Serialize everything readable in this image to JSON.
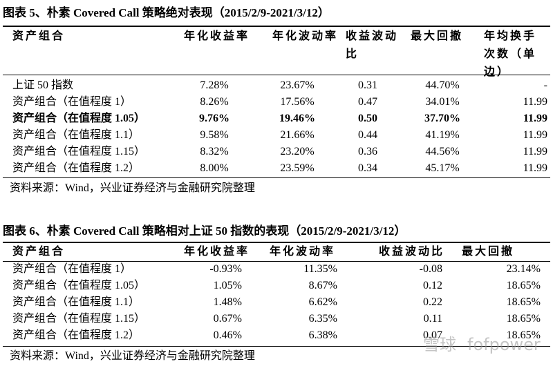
{
  "table1": {
    "title": "图表 5、朴素 Covered Call 策略绝对表现（2015/2/9-2021/3/12）",
    "header": [
      "资产组合",
      "年化收益率",
      "年化波动率",
      "收益波动比",
      "最大回撤",
      "年均换手次数（单边）"
    ],
    "rows": [
      [
        "上证 50 指数",
        "7.28%",
        "23.67%",
        "0.31",
        "44.70%",
        "-"
      ],
      [
        "资产组合（在值程度 1）",
        "8.26%",
        "17.56%",
        "0.47",
        "34.01%",
        "11.99"
      ],
      [
        "资产组合（在值程度 1.05）",
        "9.76%",
        "19.46%",
        "0.50",
        "37.70%",
        "11.99"
      ],
      [
        "资产组合（在值程度 1.1）",
        "9.58%",
        "21.66%",
        "0.44",
        "41.19%",
        "11.99"
      ],
      [
        "资产组合（在值程度 1.15）",
        "8.32%",
        "23.20%",
        "0.36",
        "44.56%",
        "11.99"
      ],
      [
        "资产组合（在值程度 1.2）",
        "8.00%",
        "23.59%",
        "0.34",
        "45.17%",
        "11.99"
      ]
    ],
    "source": "资料来源：Wind，兴业证券经济与金融研究院整理"
  },
  "table2": {
    "title": "图表 6、朴素 Covered Call 策略相对上证 50 指数的表现（2015/2/9-2021/3/12）",
    "header": [
      "资产组合",
      "年化收益率",
      "年化波动率",
      "收益波动比",
      "最大回撤"
    ],
    "rows": [
      [
        "资产组合（在值程度 1）",
        "-0.93%",
        "11.35%",
        "-0.08",
        "23.14%"
      ],
      [
        "资产组合（在值程度 1.05）",
        "1.05%",
        "8.67%",
        "0.12",
        "18.65%"
      ],
      [
        "资产组合（在值程度 1.1）",
        "1.48%",
        "6.62%",
        "0.22",
        "18.65%"
      ],
      [
        "资产组合（在值程度 1.15）",
        "0.67%",
        "6.35%",
        "0.11",
        "18.65%"
      ],
      [
        "资产组合（在值程度 1.2）",
        "0.46%",
        "6.38%",
        "0.07",
        "18.65%"
      ]
    ],
    "source": "资料来源：Wind，兴业证券经济与金融研究院整理"
  },
  "watermark": [
    "雪球",
    "fofpower"
  ]
}
